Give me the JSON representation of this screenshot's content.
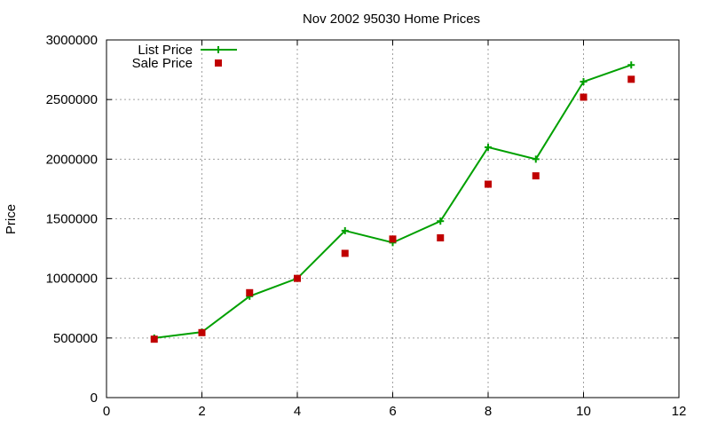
{
  "chart_data": {
    "type": "line",
    "title": "Nov 2002 95030 Home Prices",
    "xlabel": "",
    "ylabel": "Price",
    "xlim": [
      0,
      12
    ],
    "ylim": [
      0,
      3000000
    ],
    "x_ticks": [
      0,
      2,
      4,
      6,
      8,
      10,
      12
    ],
    "y_ticks": [
      0,
      500000,
      1000000,
      1500000,
      2000000,
      2500000,
      3000000
    ],
    "grid": true,
    "legend_position": "top-left",
    "series": [
      {
        "name": "List Price",
        "style": "lines+points",
        "marker": "plus",
        "color": "#00a000",
        "points": [
          [
            1,
            500000
          ],
          [
            2,
            550000
          ],
          [
            3,
            850000
          ],
          [
            4,
            1000000
          ],
          [
            5,
            1400000
          ],
          [
            6,
            1300000
          ],
          [
            7,
            1480000
          ],
          [
            8,
            2100000
          ],
          [
            9,
            2000000
          ],
          [
            10,
            2650000
          ],
          [
            11,
            2790000
          ]
        ]
      },
      {
        "name": "Sale Price",
        "style": "points",
        "marker": "square",
        "color": "#c00000",
        "points": [
          [
            1,
            490000
          ],
          [
            2,
            545000
          ],
          [
            3,
            880000
          ],
          [
            4,
            1000000
          ],
          [
            5,
            1210000
          ],
          [
            6,
            1330000
          ],
          [
            7,
            1340000
          ],
          [
            8,
            1790000
          ],
          [
            9,
            1860000
          ],
          [
            10,
            2520000
          ],
          [
            11,
            2670000
          ]
        ]
      }
    ]
  }
}
